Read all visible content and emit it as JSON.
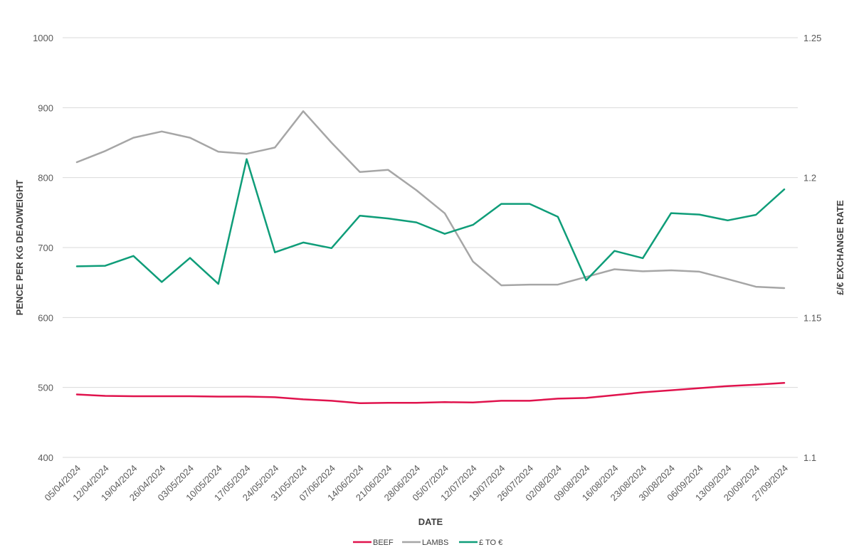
{
  "chart_data": {
    "type": "line",
    "title": "",
    "xlabel": "DATE",
    "ylabel": "PENCE PER KG DEADWEIGHT",
    "y2label": "£/€ EXCHANGE RATE",
    "ylim": [
      400,
      1000
    ],
    "y2lim": [
      1.1,
      1.25
    ],
    "yticks": [
      "400",
      "500",
      "600",
      "700",
      "800",
      "900",
      "1000"
    ],
    "y2ticks": [
      "1.1",
      "1.15",
      "1.2",
      "1.25"
    ],
    "grid": true,
    "legend_position": "bottom",
    "categories": [
      "05/04/2024",
      "12/04/2024",
      "19/04/2024",
      "26/04/2024",
      "03/05/2024",
      "10/05/2024",
      "17/05/2024",
      "24/05/2024",
      "31/05/2024",
      "07/06/2024",
      "14/06/2024",
      "21/06/2024",
      "28/06/2024",
      "05/07/2024",
      "12/07/2024",
      "19/07/2024",
      "26/07/2024",
      "02/08/2024",
      "09/08/2024",
      "16/08/2024",
      "23/08/2024",
      "30/08/2024",
      "06/09/2024",
      "13/09/2024",
      "20/09/2024",
      "27/09/2024"
    ],
    "series": [
      {
        "name": "BEEF",
        "axis": "left",
        "color": "#e0134d",
        "values": [
          490,
          488,
          487.5,
          487.5,
          487.5,
          487,
          487,
          486,
          483,
          481,
          477.5,
          478,
          478,
          479,
          478.5,
          481,
          481,
          484,
          485,
          489,
          493,
          496,
          499,
          502,
          504,
          506.5
        ]
      },
      {
        "name": "LAMBS",
        "axis": "left",
        "color": "#a6a6a6",
        "values": [
          822,
          838,
          857,
          866,
          857,
          837,
          834,
          843,
          895,
          850,
          808,
          811,
          782,
          749,
          680,
          646,
          647,
          647,
          658,
          669,
          666,
          667.5,
          665.5,
          655,
          644,
          642
        ]
      },
      {
        "name": "£ TO €",
        "axis": "right",
        "color": "#0f9d79",
        "values": [
          1.1683,
          1.1685,
          1.172,
          1.1627,
          1.1713,
          1.162,
          1.2066,
          1.1733,
          1.1768,
          1.1748,
          1.1864,
          1.1854,
          1.184,
          1.1799,
          1.1831,
          1.1906,
          1.1906,
          1.186,
          1.1633,
          1.1738,
          1.1712,
          1.1873,
          1.1868,
          1.1847,
          1.1867,
          1.1958
        ]
      }
    ]
  }
}
